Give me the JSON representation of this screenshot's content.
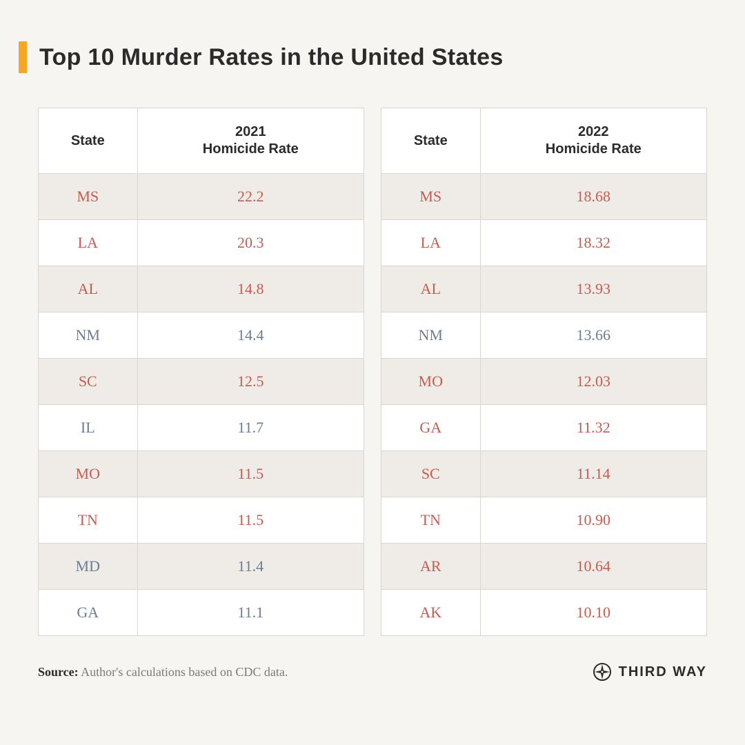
{
  "title": "Top 10 Murder Rates in the United States",
  "colors": {
    "background": "#f7f5f2",
    "accent_bar": "#f5a623",
    "border": "#d9d6d0",
    "row_shade": "#efece7",
    "row_plain": "#ffffff",
    "text_dark": "#2b2b2b",
    "text_muted": "#7a7a76",
    "value_red": "#c85a4e",
    "value_blue": "#6a7d93"
  },
  "typography": {
    "title_fontsize": 34,
    "header_fontsize": 20,
    "cell_fontsize": 22,
    "footer_fontsize": 18
  },
  "tables": [
    {
      "columns": [
        "State",
        "2021\nHomicide Rate"
      ],
      "rows": [
        {
          "state": "MS",
          "rate": "22.2",
          "color": "red"
        },
        {
          "state": "LA",
          "rate": "20.3",
          "color": "red"
        },
        {
          "state": "AL",
          "rate": "14.8",
          "color": "red"
        },
        {
          "state": "NM",
          "rate": "14.4",
          "color": "blue"
        },
        {
          "state": "SC",
          "rate": "12.5",
          "color": "red"
        },
        {
          "state": "IL",
          "rate": "11.7",
          "color": "blue"
        },
        {
          "state": "MO",
          "rate": "11.5",
          "color": "red"
        },
        {
          "state": "TN",
          "rate": "11.5",
          "color": "red"
        },
        {
          "state": "MD",
          "rate": "11.4",
          "color": "blue"
        },
        {
          "state": "GA",
          "rate": "11.1",
          "color": "blue"
        }
      ]
    },
    {
      "columns": [
        "State",
        "2022\nHomicide Rate"
      ],
      "rows": [
        {
          "state": "MS",
          "rate": "18.68",
          "color": "red"
        },
        {
          "state": "LA",
          "rate": "18.32",
          "color": "red"
        },
        {
          "state": "AL",
          "rate": "13.93",
          "color": "red"
        },
        {
          "state": "NM",
          "rate": "13.66",
          "color": "blue"
        },
        {
          "state": "MO",
          "rate": "12.03",
          "color": "red"
        },
        {
          "state": "GA",
          "rate": "11.32",
          "color": "red"
        },
        {
          "state": "SC",
          "rate": "11.14",
          "color": "red"
        },
        {
          "state": "TN",
          "rate": "10.90",
          "color": "red"
        },
        {
          "state": "AR",
          "rate": "10.64",
          "color": "red"
        },
        {
          "state": "AK",
          "rate": "10.10",
          "color": "red"
        }
      ]
    }
  ],
  "source_label": "Source:",
  "source_text": " Author's calculations based on CDC data.",
  "brand": "THIRD WAY"
}
